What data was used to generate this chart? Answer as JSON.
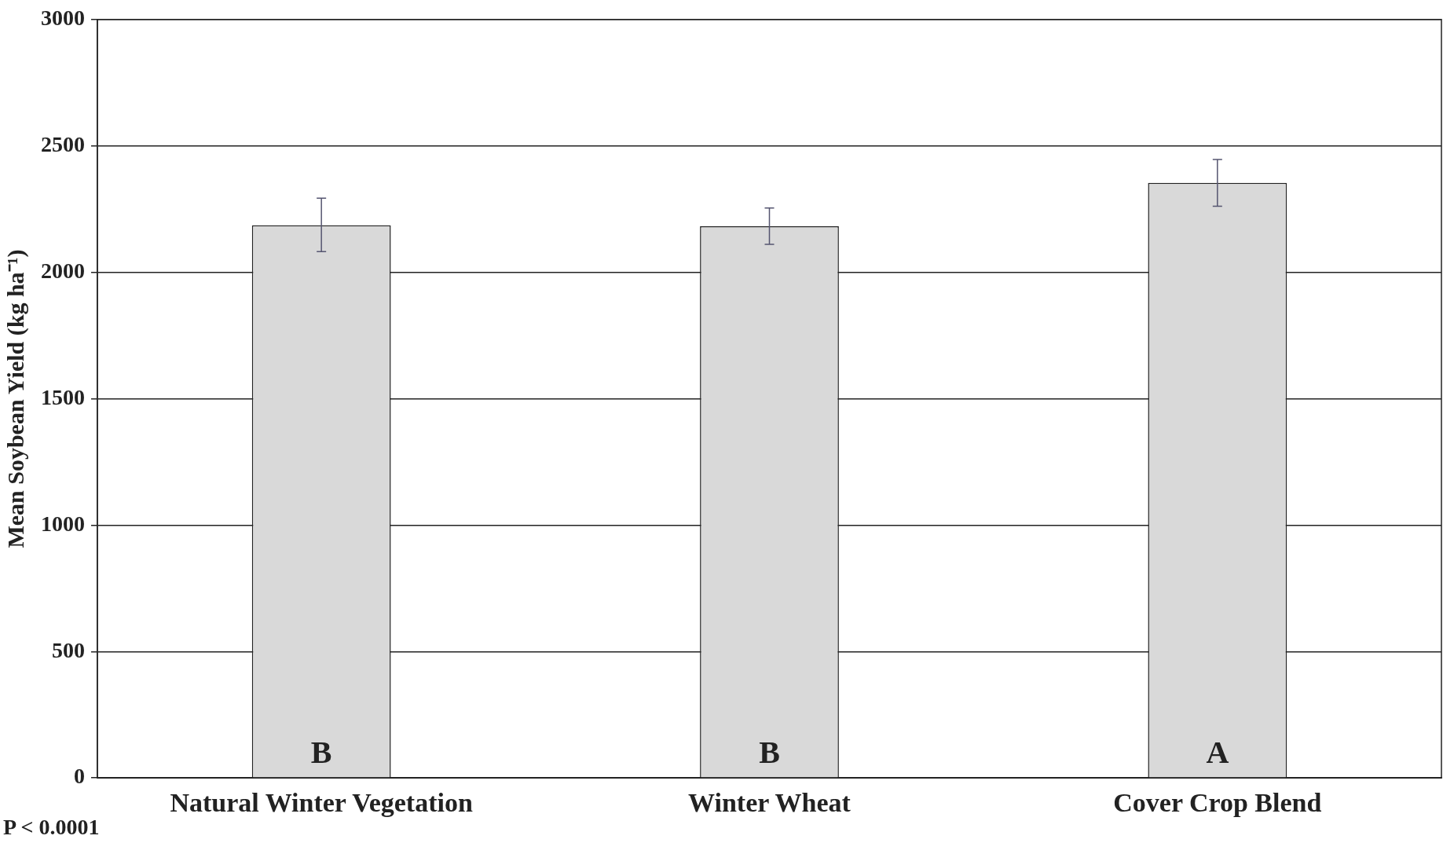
{
  "chart_data": {
    "type": "bar",
    "ylabel": "Mean Soybean Yield (kg ha⁻¹)",
    "categories": [
      "Natural Winter Vegetation",
      "Winter Wheat",
      "Cover Crop Blend"
    ],
    "values": [
      2186,
      2182,
      2354
    ],
    "errors": [
      [
        2082,
        2293
      ],
      [
        2111,
        2254
      ],
      [
        2261,
        2446
      ]
    ],
    "color": "#d9d9d9",
    "ylim": [
      0,
      3000
    ],
    "yticks": [
      0,
      500,
      1000,
      1500,
      2000,
      2500,
      3000
    ],
    "grid": "y",
    "legend": false,
    "annotations": [
      "B",
      "B",
      "A",
      "P < 0.0001"
    ]
  }
}
